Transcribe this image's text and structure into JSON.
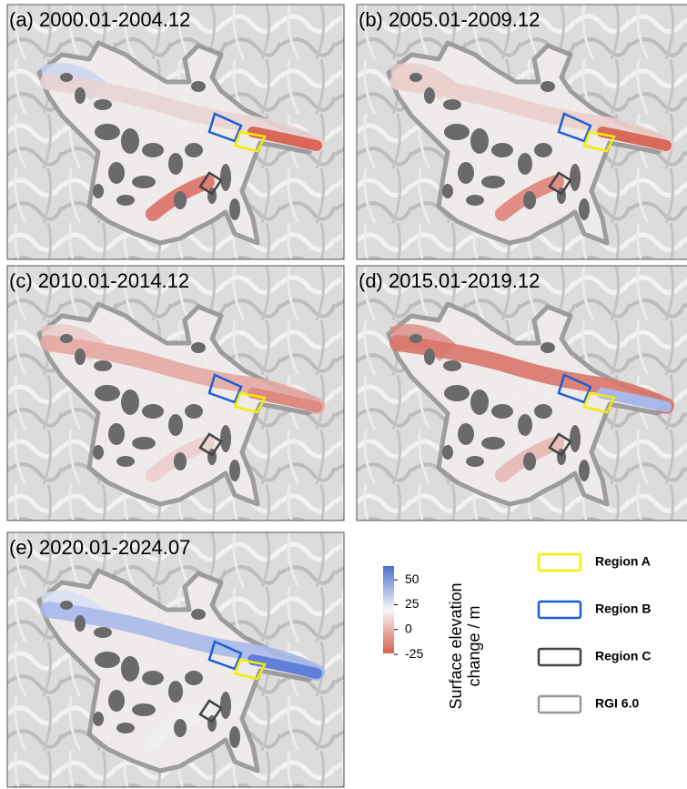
{
  "panels": [
    {
      "title": "(a) 2000.01-2004.12"
    },
    {
      "title": "(b) 2005.01-2009.12"
    },
    {
      "title": "(c) 2010.01-2014.12"
    },
    {
      "title": "(d) 2015.01-2019.12"
    },
    {
      "title": "(e) 2020.01-2024.07"
    }
  ],
  "colorbar": {
    "label": [
      "Surface elevation",
      "change / m"
    ],
    "ticks": [
      50,
      25,
      0,
      -25
    ],
    "range": [
      -24,
      64
    ],
    "colors": [
      "#d6604d",
      "#f7f7f7",
      "#4a6fd0"
    ]
  },
  "legend": [
    {
      "label": "Region A",
      "color": "#f2ee00"
    },
    {
      "label": "Region B",
      "color": "#1a5fd6"
    },
    {
      "label": "Region C",
      "color": "#444444"
    },
    {
      "label": "RGI 6.0",
      "color": "#9a9a9a"
    }
  ]
}
